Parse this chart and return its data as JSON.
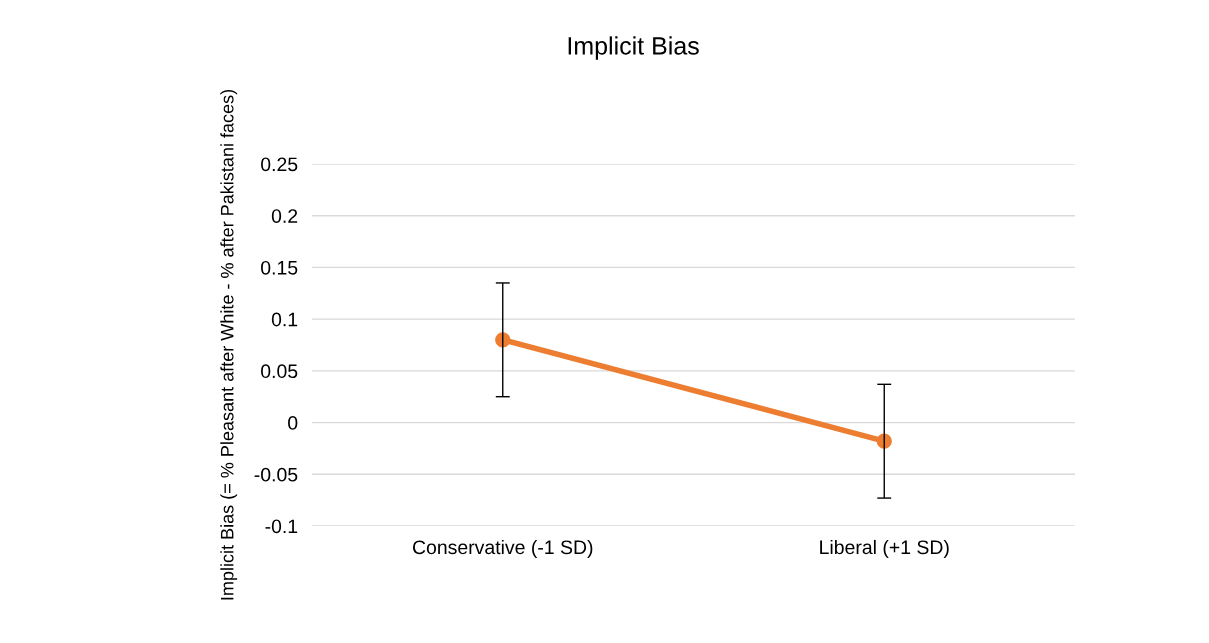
{
  "chart_data": {
    "type": "line",
    "title": "Implicit Bias",
    "ylabel": "Implicit Bias (= % Pleasant after White - % after Pakistani faces)",
    "categories": [
      "Conservative (-1 SD)",
      "Liberal (+1 SD)"
    ],
    "series": [
      {
        "color": "#ed7d31",
        "values": [
          0.08,
          -0.018
        ],
        "errors": [
          0.055,
          0.055
        ]
      }
    ],
    "ylim": [
      -0.1,
      0.25
    ],
    "yticks": [
      -0.1,
      -0.05,
      0,
      0.05,
      0.1,
      0.15,
      0.2,
      0.25
    ],
    "grid": "y",
    "marker": "circle",
    "line_style": "solid",
    "legend": false
  }
}
